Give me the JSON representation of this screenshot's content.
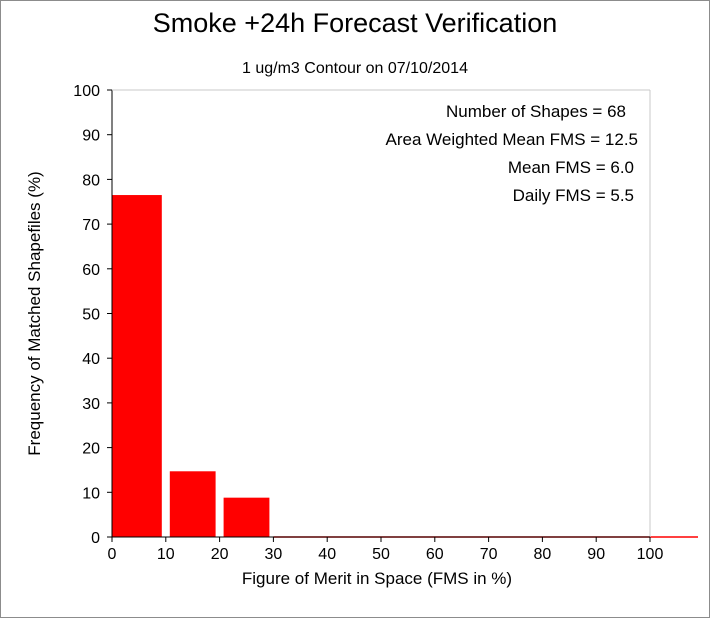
{
  "chart_data": {
    "type": "bar",
    "title": "Smoke +24h Forecast Verification",
    "subtitle": "1 ug/m3 Contour on 07/10/2014",
    "xlabel": "Figure of Merit in Space (FMS in %)",
    "ylabel": "Frequency of Matched Shapefiles (%)",
    "xlim": [
      0,
      100
    ],
    "ylim": [
      0,
      100
    ],
    "x_ticks": [
      0,
      10,
      20,
      30,
      40,
      50,
      60,
      70,
      80,
      90,
      100
    ],
    "y_ticks": [
      0,
      10,
      20,
      30,
      40,
      50,
      60,
      70,
      80,
      90,
      100
    ],
    "bins": [
      {
        "x0": 0,
        "x1": 10,
        "value": 76.5
      },
      {
        "x0": 10,
        "x1": 20,
        "value": 14.7
      },
      {
        "x0": 20,
        "x1": 30,
        "value": 8.8
      },
      {
        "x0": 30,
        "x1": 40,
        "value": 0
      },
      {
        "x0": 40,
        "x1": 50,
        "value": 0
      },
      {
        "x0": 50,
        "x1": 60,
        "value": 0
      },
      {
        "x0": 60,
        "x1": 70,
        "value": 0
      },
      {
        "x0": 70,
        "x1": 80,
        "value": 0
      },
      {
        "x0": 80,
        "x1": 90,
        "value": 0
      },
      {
        "x0": 90,
        "x1": 100,
        "value": 0
      }
    ],
    "bar_color": "#ff0000",
    "annotations": [
      "Number of Shapes = 68",
      "Area Weighted Mean FMS = 12.5",
      "Mean FMS = 6.0",
      "Daily FMS = 5.5"
    ],
    "grid": false
  }
}
